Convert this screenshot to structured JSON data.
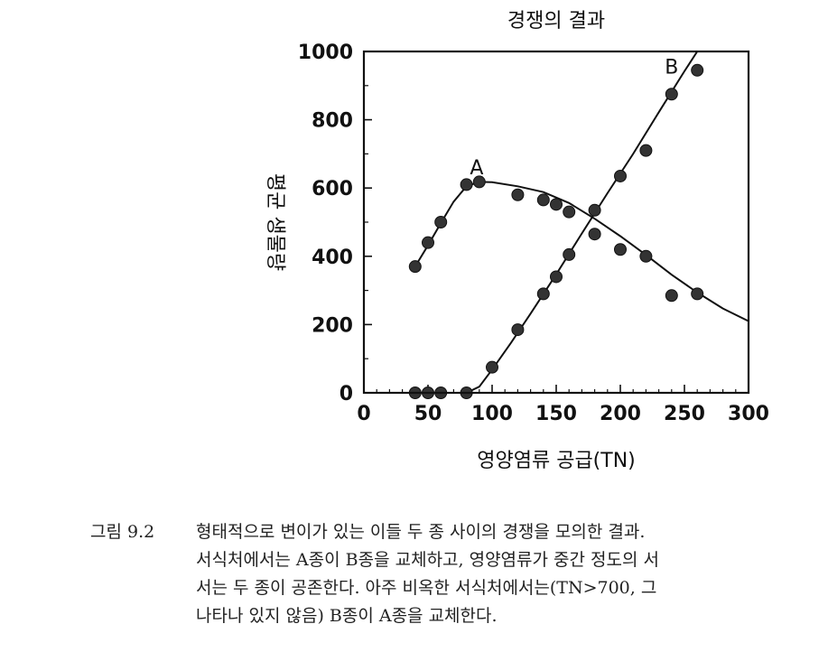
{
  "chart_data": {
    "type": "scatter",
    "title": "경쟁의 결과",
    "xlabel": "영양염류 공급(TN)",
    "ylabel": "평균 생물량",
    "xlim": [
      0,
      300
    ],
    "ylim": [
      0,
      1000
    ],
    "xticks": [
      0,
      50,
      100,
      150,
      200,
      250,
      300
    ],
    "yticks": [
      0,
      200,
      400,
      600,
      800,
      1000
    ],
    "series": [
      {
        "name": "A",
        "points": [
          [
            40,
            370
          ],
          [
            50,
            440
          ],
          [
            60,
            500
          ],
          [
            80,
            610
          ],
          [
            90,
            618
          ],
          [
            120,
            580
          ],
          [
            140,
            565
          ],
          [
            150,
            552
          ],
          [
            160,
            530
          ],
          [
            180,
            465
          ],
          [
            200,
            420
          ],
          [
            220,
            400
          ],
          [
            240,
            285
          ],
          [
            260,
            290
          ]
        ],
        "curve": [
          [
            40,
            370
          ],
          [
            50,
            432
          ],
          [
            60,
            497
          ],
          [
            70,
            560
          ],
          [
            80,
            605
          ],
          [
            90,
            618
          ],
          [
            100,
            617
          ],
          [
            120,
            605
          ],
          [
            140,
            588
          ],
          [
            160,
            556
          ],
          [
            180,
            510
          ],
          [
            200,
            459
          ],
          [
            220,
            404
          ],
          [
            240,
            346
          ],
          [
            260,
            294
          ],
          [
            280,
            247
          ],
          [
            300,
            210
          ]
        ]
      },
      {
        "name": "B",
        "points": [
          [
            40,
            0
          ],
          [
            50,
            0
          ],
          [
            60,
            0
          ],
          [
            80,
            0
          ],
          [
            100,
            75
          ],
          [
            120,
            185
          ],
          [
            140,
            290
          ],
          [
            150,
            340
          ],
          [
            160,
            405
          ],
          [
            180,
            535
          ],
          [
            200,
            635
          ],
          [
            220,
            710
          ],
          [
            240,
            875
          ],
          [
            260,
            945
          ]
        ],
        "curve": [
          [
            80,
            0
          ],
          [
            90,
            18
          ],
          [
            100,
            68
          ],
          [
            115,
            148
          ],
          [
            130,
            232
          ],
          [
            150,
            347
          ],
          [
            170,
            467
          ],
          [
            190,
            585
          ],
          [
            210,
            700
          ],
          [
            230,
            822
          ],
          [
            250,
            942
          ],
          [
            260,
            1000
          ]
        ]
      }
    ]
  },
  "caption": {
    "number": "그림 9.2",
    "lines": [
      "형태적으로 변이가 있는 이들 두 종 사이의 경쟁을 모의한 결과.",
      "서식처에서는 A종이 B종을 교체하고, 영양염류가 중간 정도의 서",
      "서는 두 종이 공존한다. 아주 비옥한 서식처에서는(TN>700, 그",
      "나타나 있지 않음) B종이 A종을 교체한다."
    ]
  }
}
